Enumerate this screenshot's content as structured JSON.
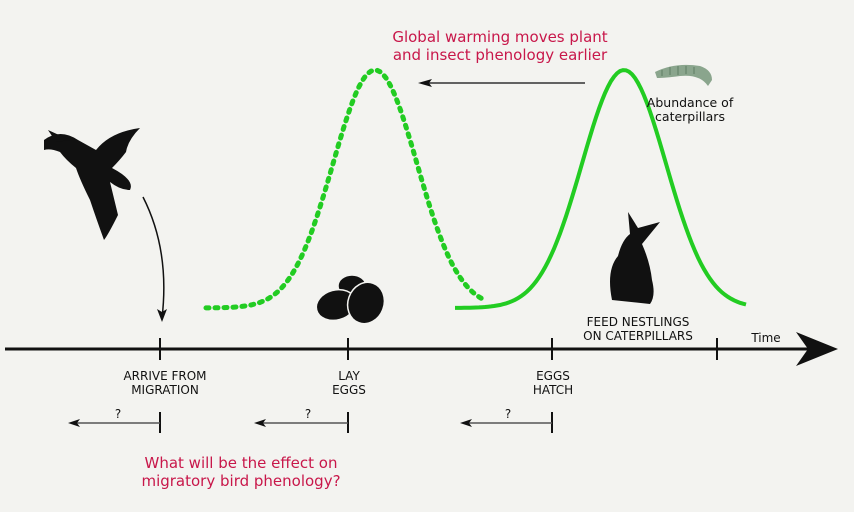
{
  "headline": [
    "Global warming moves plant",
    "and insect phenology earlier"
  ],
  "curve_label": [
    "Abundance of",
    "caterpillars"
  ],
  "axis_label": "Time",
  "events": [
    {
      "label": [
        "ARRIVE FROM",
        "MIGRATION"
      ],
      "shift": "?"
    },
    {
      "label": [
        "LAY",
        "EGGS"
      ],
      "shift": "?"
    },
    {
      "label": [
        "EGGS",
        "HATCH"
      ],
      "shift": "?"
    }
  ],
  "feed_label": [
    "FEED NESTLINGS",
    "ON CATERPILLARS"
  ],
  "question": [
    "What will be the effect on",
    "migratory bird phenology?"
  ],
  "colors": {
    "curve": "#22cc22",
    "accent_text": "#c8174a",
    "axis": "#111111",
    "background": "#f3f3f0"
  },
  "icons": [
    "bird-silhouette",
    "eggs-silhouette",
    "nestling-silhouette",
    "caterpillar-image"
  ]
}
